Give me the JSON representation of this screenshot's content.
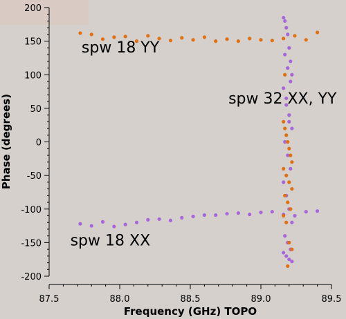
{
  "chart_data": {
    "type": "scatter",
    "xlabel": "Frequency (GHz) TOPO",
    "ylabel": "Phase (degrees)",
    "xlim": [
      87.5,
      89.5
    ],
    "ylim": [
      -200,
      200
    ],
    "xticks": [
      "87.5",
      "88.0",
      "88.5",
      "89.0",
      "89.5"
    ],
    "yticks": [
      "200",
      "150",
      "100",
      "50",
      "0",
      "-50",
      "-100",
      "-150",
      "-200"
    ],
    "xtick_values": [
      87.5,
      88.0,
      88.5,
      89.0,
      89.5
    ],
    "ytick_values": [
      200,
      150,
      100,
      50,
      0,
      -50,
      -100,
      -150,
      -200
    ],
    "grid": false,
    "colors": {
      "orange": "#e07010",
      "purple": "#a866dd"
    },
    "annotations": [
      {
        "text": "spw 18 YY",
        "x": 87.73,
        "y": 133
      },
      {
        "text": "spw 32 XX, YY",
        "x": 88.77,
        "y": 57
      },
      {
        "text": "spw 18 XX",
        "x": 87.65,
        "y": -154
      }
    ],
    "series": [
      {
        "color": "orange",
        "x": [
          87.72,
          87.8,
          87.88,
          87.96,
          88.04,
          88.12,
          88.2,
          88.28,
          88.36,
          88.44,
          88.52,
          88.6,
          88.68,
          88.76,
          88.84,
          88.92,
          89.0,
          89.08,
          89.16,
          89.24,
          89.32,
          89.4
        ],
        "y": [
          162,
          160,
          153,
          156,
          157,
          150,
          158,
          154,
          151,
          155,
          152,
          156,
          150,
          153,
          150,
          154,
          152,
          151,
          154,
          158,
          152,
          163
        ]
      },
      {
        "color": "purple",
        "x": [
          87.72,
          87.8,
          87.88,
          87.96,
          88.04,
          88.12,
          88.2,
          88.28,
          88.36,
          88.44,
          88.52,
          88.6,
          88.68,
          88.76,
          88.84,
          88.92,
          89.0,
          89.08,
          89.16,
          89.24,
          89.32,
          89.4
        ],
        "y": [
          -122,
          -125,
          -119,
          -126,
          -123,
          -120,
          -116,
          -115,
          -117,
          -113,
          -111,
          -109,
          -109,
          -107,
          -106,
          -108,
          -105,
          -104,
          -108,
          -110,
          -104,
          -103
        ]
      },
      {
        "color": "purple",
        "x": [
          89.16,
          89.17,
          89.18,
          89.19,
          89.2,
          89.21,
          89.22,
          89.16,
          89.18,
          89.2,
          89.22,
          89.17,
          89.19,
          89.21,
          89.16,
          89.18,
          89.2,
          89.22,
          89.17,
          89.19,
          89.21,
          89.16,
          89.18,
          89.2,
          89.22,
          89.17,
          89.19,
          89.21,
          89.18,
          89.2
        ],
        "y": [
          185,
          180,
          170,
          160,
          140,
          120,
          100,
          80,
          55,
          40,
          20,
          0,
          -20,
          -40,
          -60,
          -80,
          -100,
          -120,
          -140,
          -150,
          -160,
          -165,
          -170,
          -175,
          -178,
          130,
          110,
          90,
          65,
          30
        ]
      },
      {
        "color": "orange",
        "x": [
          89.16,
          89.17,
          89.18,
          89.19,
          89.2,
          89.21,
          89.22,
          89.16,
          89.18,
          89.2,
          89.22,
          89.17,
          89.19,
          89.21,
          89.16,
          89.18,
          89.2,
          89.22,
          89.17,
          89.19
        ],
        "y": [
          30,
          20,
          10,
          0,
          -10,
          -20,
          -30,
          -40,
          -50,
          -60,
          -70,
          -80,
          -90,
          -100,
          -110,
          -120,
          -150,
          -160,
          100,
          -185
        ]
      }
    ]
  }
}
